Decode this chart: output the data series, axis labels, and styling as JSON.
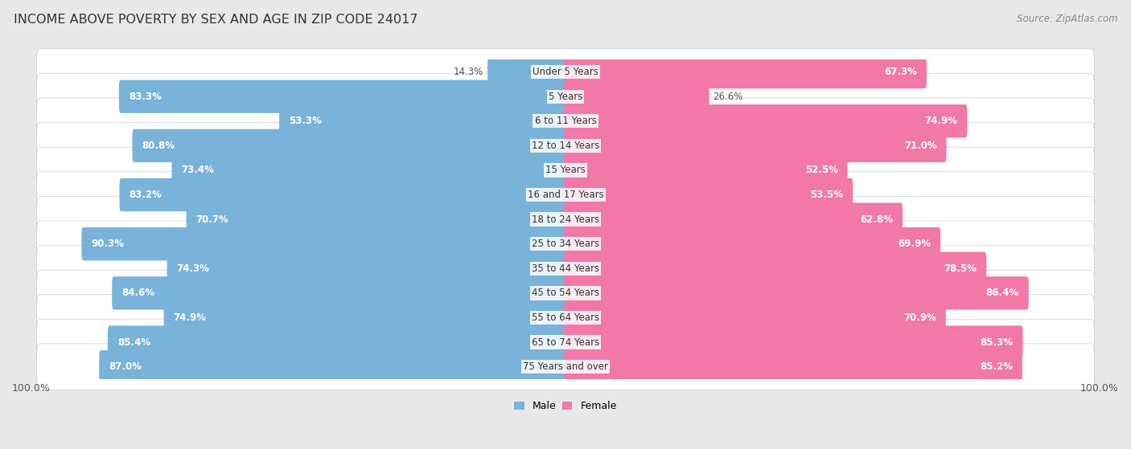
{
  "title": "INCOME ABOVE POVERTY BY SEX AND AGE IN ZIP CODE 24017",
  "source": "Source: ZipAtlas.com",
  "categories": [
    "Under 5 Years",
    "5 Years",
    "6 to 11 Years",
    "12 to 14 Years",
    "15 Years",
    "16 and 17 Years",
    "18 to 24 Years",
    "25 to 34 Years",
    "35 to 44 Years",
    "45 to 54 Years",
    "55 to 64 Years",
    "65 to 74 Years",
    "75 Years and over"
  ],
  "male_values": [
    14.3,
    83.3,
    53.3,
    80.8,
    73.4,
    83.2,
    70.7,
    90.3,
    74.3,
    84.6,
    74.9,
    85.4,
    87.0
  ],
  "female_values": [
    67.3,
    26.6,
    74.9,
    71.0,
    52.5,
    53.5,
    62.8,
    69.9,
    78.5,
    86.4,
    70.9,
    85.3,
    85.2
  ],
  "male_color": "#7ab3d9",
  "female_color": "#f278a8",
  "male_label": "Male",
  "female_label": "Female",
  "axis_max": 100.0,
  "background_color": "#e8e8e8",
  "bar_bg_color": "#ffffff",
  "row_border_color": "#cccccc",
  "title_fontsize": 11.5,
  "source_fontsize": 8.5,
  "value_fontsize": 8.5,
  "category_fontsize": 8.5
}
